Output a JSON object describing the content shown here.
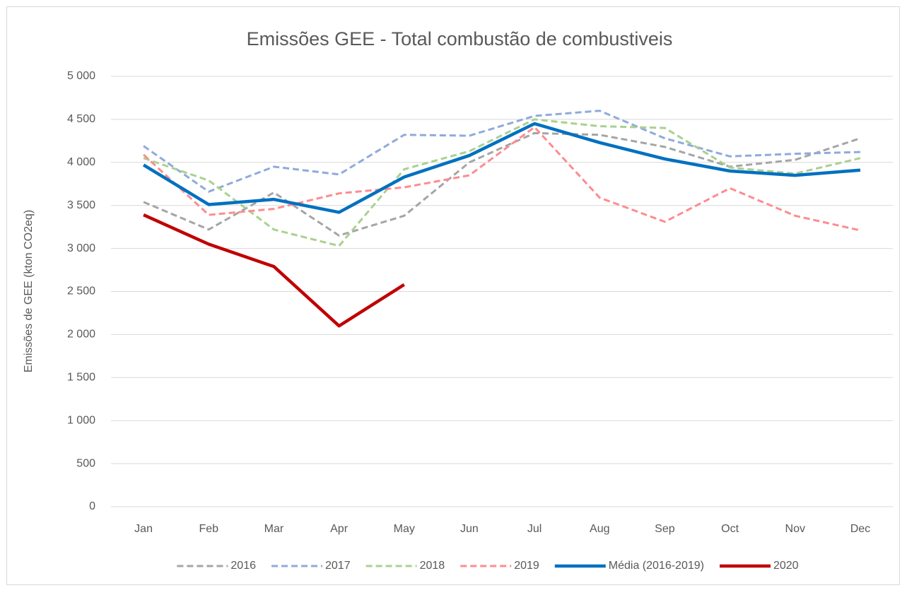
{
  "chart_data": {
    "type": "line",
    "title": "Emissões GEE - Total combustão de combustiveis",
    "y_label": "Emissões de GEE (kton CO2eq)",
    "categories": [
      "Jan",
      "Feb",
      "Mar",
      "Apr",
      "May",
      "Jun",
      "Jul",
      "Aug",
      "Sep",
      "Oct",
      "Nov",
      "Dec"
    ],
    "series": [
      {
        "name": "2016",
        "color": "#a5a5a5",
        "dashed": true,
        "line_width": 3,
        "values": [
          3540,
          3220,
          3650,
          3150,
          3380,
          4000,
          4340,
          4320,
          4180,
          3950,
          4030,
          4280
        ]
      },
      {
        "name": "2017",
        "color": "#8faadc",
        "dashed": true,
        "line_width": 3,
        "values": [
          4190,
          3660,
          3950,
          3860,
          4320,
          4310,
          4540,
          4600,
          4280,
          4070,
          4100,
          4120
        ]
      },
      {
        "name": "2018",
        "color": "#a9d18e",
        "dashed": true,
        "line_width": 3,
        "values": [
          4050,
          3790,
          3220,
          3030,
          3920,
          4130,
          4500,
          4420,
          4400,
          3940,
          3870,
          4050
        ]
      },
      {
        "name": "2019",
        "color": "#ff8b8f",
        "dashed": true,
        "line_width": 3,
        "values": [
          4090,
          3390,
          3460,
          3640,
          3710,
          3850,
          4410,
          3590,
          3310,
          3700,
          3380,
          3210
        ]
      },
      {
        "name": "Média (2016-2019)",
        "color": "#0070c0",
        "dashed": false,
        "line_width": 4.5,
        "values": [
          3970,
          3510,
          3570,
          3420,
          3830,
          4080,
          4450,
          4230,
          4040,
          3900,
          3850,
          3910
        ]
      },
      {
        "name": "2020",
        "color": "#c00000",
        "dashed": false,
        "line_width": 4.5,
        "values": [
          3390,
          3050,
          2790,
          2100,
          2580,
          null,
          null,
          null,
          null,
          null,
          null,
          null
        ]
      }
    ],
    "ylim": [
      0,
      5000
    ],
    "yticks": [
      0,
      500,
      {
        "value": 1000,
        "label": "1 000"
      },
      {
        "value": 1500,
        "label": "1 500"
      },
      {
        "value": 2000,
        "label": "2 000"
      },
      {
        "value": 2500,
        "label": "2 500"
      },
      {
        "value": 3000,
        "label": "3 000"
      },
      {
        "value": 3500,
        "label": "3 500"
      },
      {
        "value": 4000,
        "label": "4 000"
      },
      {
        "value": 4500,
        "label": "4 500"
      },
      {
        "value": 5000,
        "label": "5 000"
      }
    ],
    "grid": true,
    "legend": "bottom"
  }
}
